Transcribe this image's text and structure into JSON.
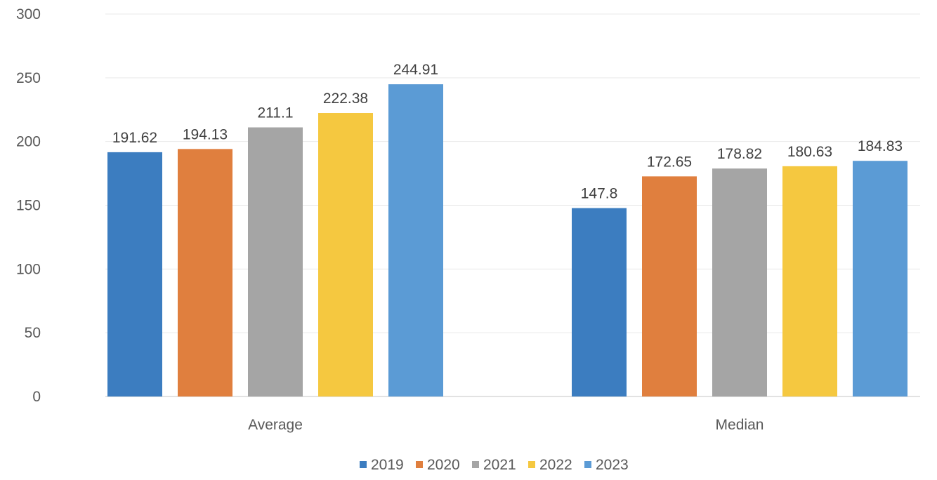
{
  "chart_data": {
    "type": "bar",
    "title": "",
    "xlabel": "",
    "ylabel": "",
    "categories": [
      "Average",
      "Median"
    ],
    "series": [
      {
        "name": "2019",
        "color": "#3c7dc0",
        "values": [
          191.62,
          147.8
        ],
        "labels": [
          "191.62",
          "147.8"
        ]
      },
      {
        "name": "2020",
        "color": "#e07f3e",
        "values": [
          194.13,
          172.65
        ],
        "labels": [
          "194.13",
          "172.65"
        ]
      },
      {
        "name": "2021",
        "color": "#a5a5a5",
        "values": [
          211.1,
          178.82
        ],
        "labels": [
          "211.1",
          "178.82"
        ]
      },
      {
        "name": "2022",
        "color": "#f5c840",
        "values": [
          222.38,
          180.63
        ],
        "labels": [
          "222.38",
          "180.63"
        ]
      },
      {
        "name": "2023",
        "color": "#5b9bd5",
        "values": [
          244.91,
          184.83
        ],
        "labels": [
          "244.91",
          "184.83"
        ]
      }
    ],
    "ylim": [
      0,
      300
    ],
    "yticks": [
      0,
      50,
      100,
      150,
      200,
      250,
      300
    ],
    "grid": true,
    "legend_position": "bottom"
  }
}
